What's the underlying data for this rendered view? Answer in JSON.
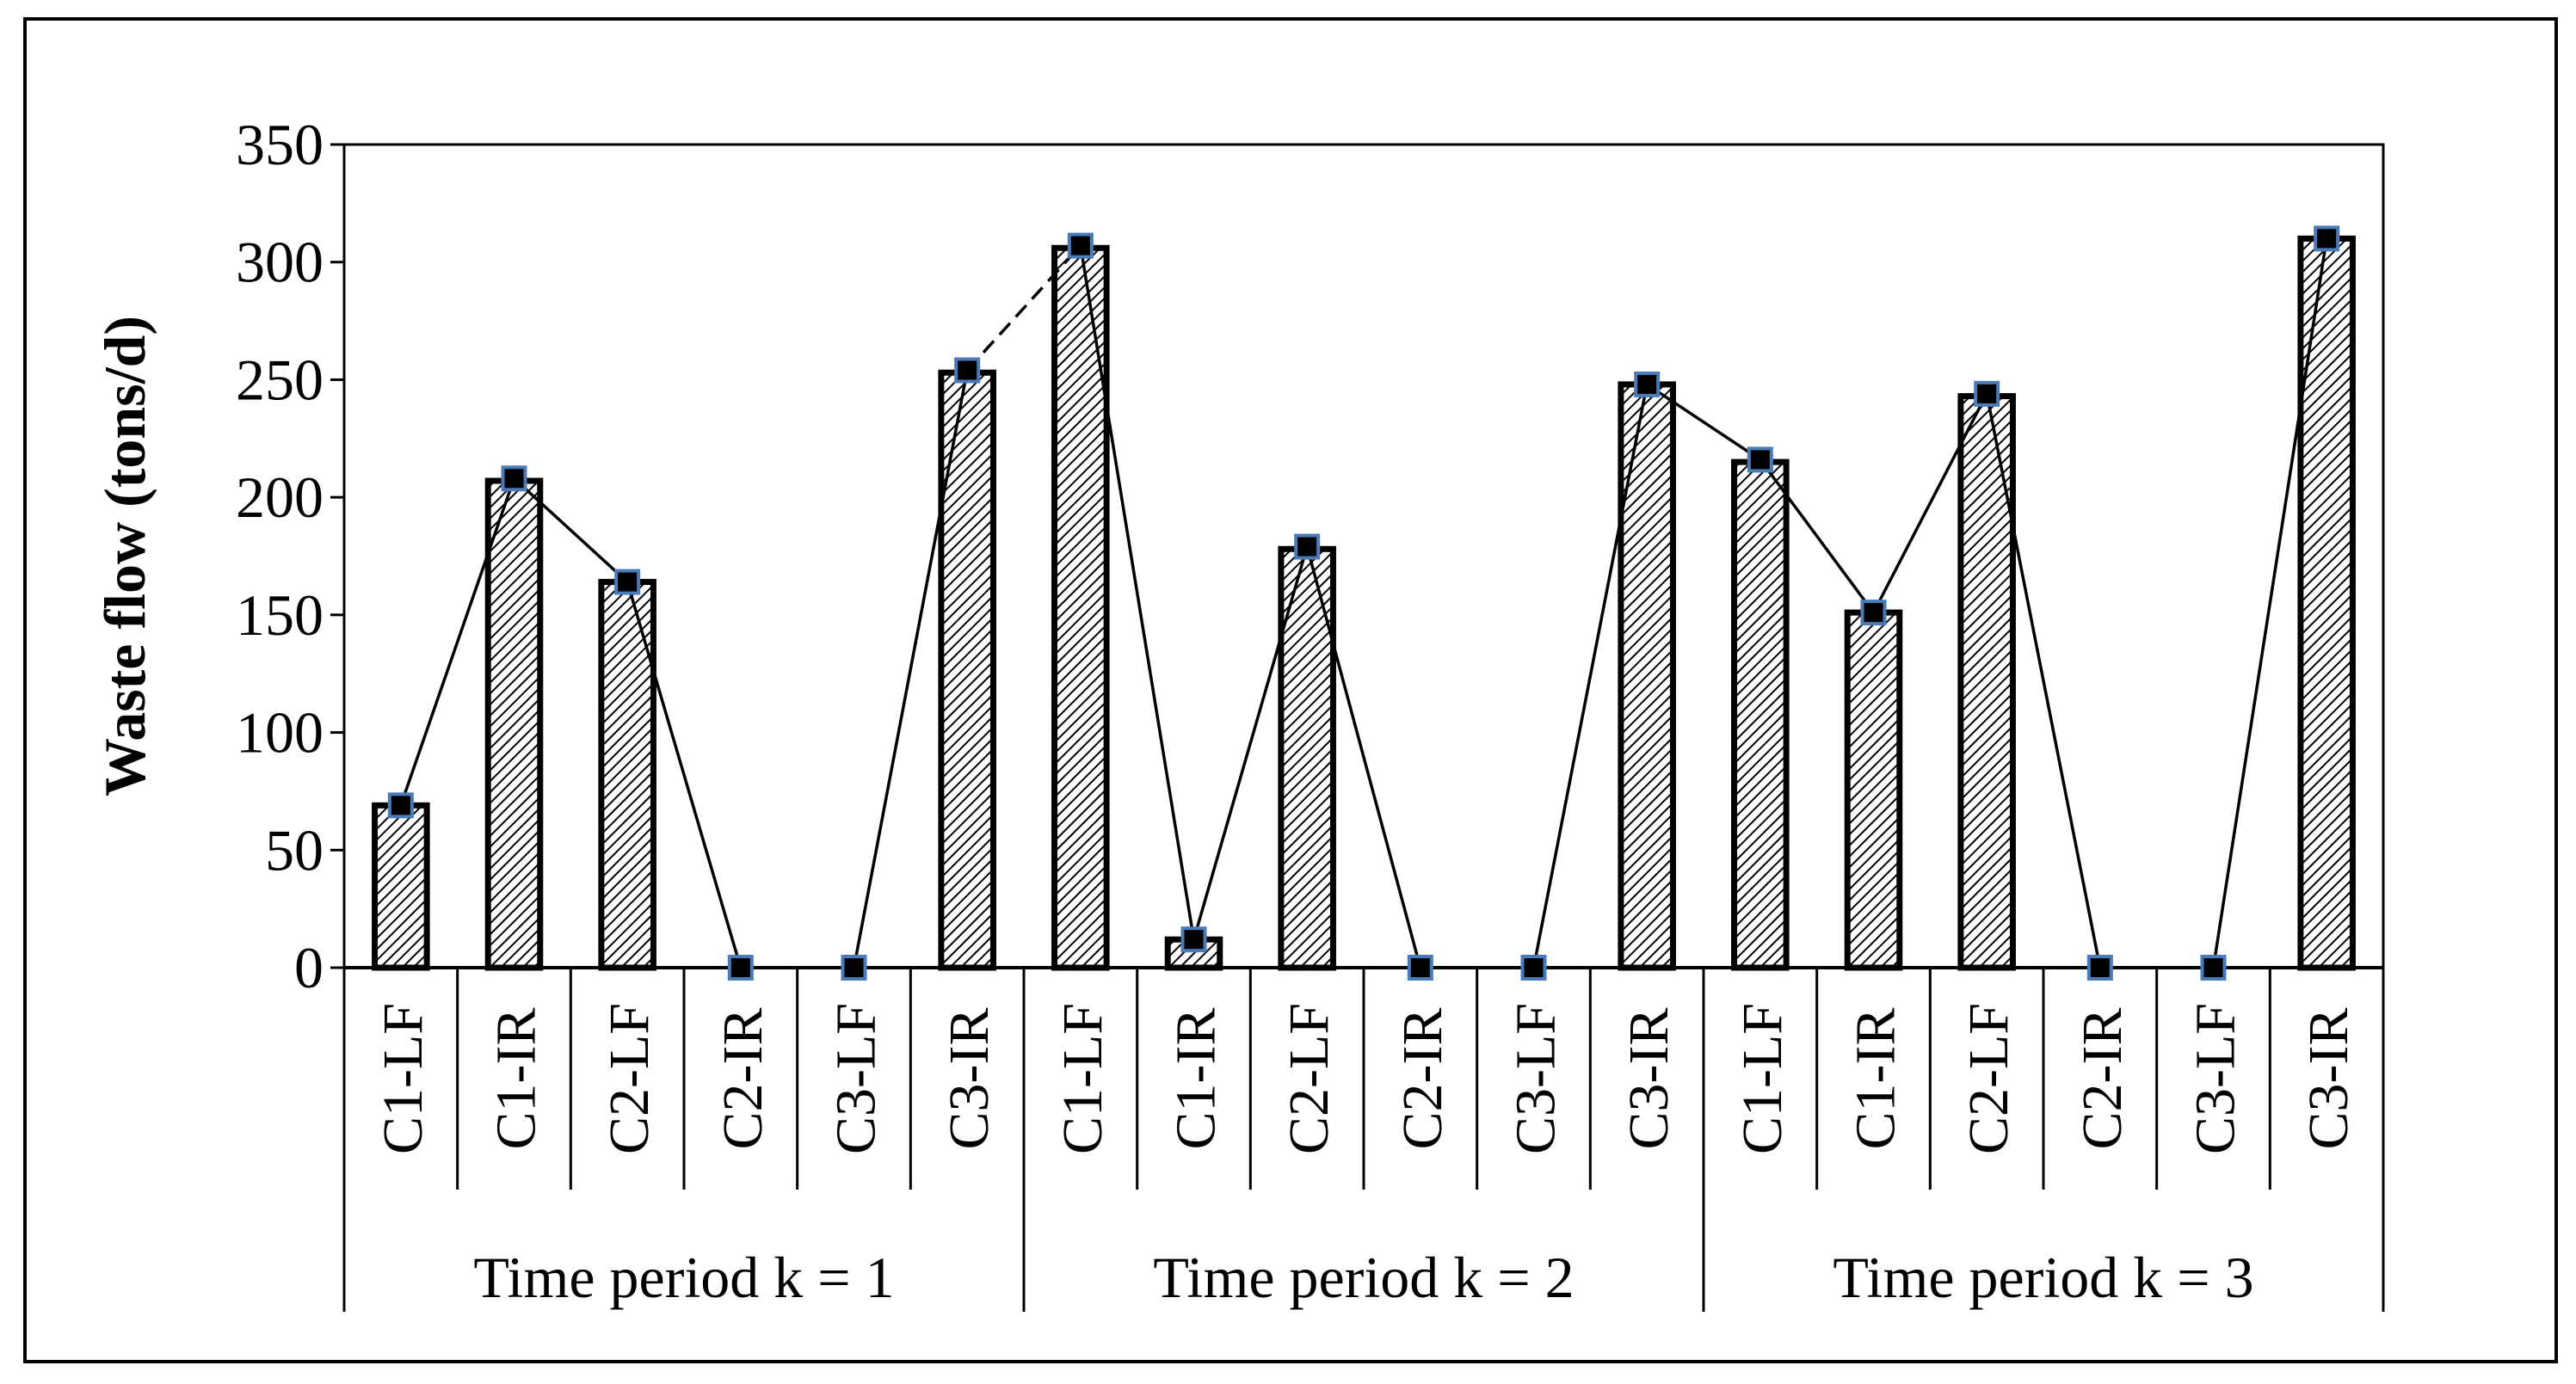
{
  "chart_data": {
    "type": "bar",
    "title": "",
    "xlabel": "",
    "ylabel": "Waste flow (tons/d)",
    "ylim": [
      0,
      350
    ],
    "yticks": [
      0,
      50,
      100,
      150,
      200,
      250,
      300,
      350
    ],
    "grid": false,
    "legend": "none",
    "categories": [
      "C1-LF",
      "C1-IR",
      "C2-LF",
      "C2-IR",
      "C3-LF",
      "C3-IR",
      "C1-LF",
      "C1-IR",
      "C2-LF",
      "C2-IR",
      "C3-LF",
      "C3-IR",
      "C1-LF",
      "C1-IR",
      "C2-LF",
      "C2-IR",
      "C3-LF",
      "C3-IR"
    ],
    "groups": [
      {
        "label": "Time period k = 1",
        "span": 6
      },
      {
        "label": "Time period k = 2",
        "span": 6
      },
      {
        "label": "Time period k = 3",
        "span": 6
      }
    ],
    "series": [
      {
        "type": "bar",
        "values": [
          69,
          207,
          164,
          0,
          0,
          253,
          306,
          12,
          178,
          0,
          0,
          248,
          215,
          151,
          243,
          0,
          0,
          310
        ]
      },
      {
        "type": "line",
        "values": [
          69,
          208,
          164,
          0,
          0,
          254,
          307,
          12,
          179,
          0,
          0,
          248,
          216,
          151,
          244,
          0,
          0,
          310
        ]
      }
    ],
    "dashed_segments": [
      [
        5,
        6
      ]
    ],
    "colors": {
      "bar_fill_pattern": "#000000",
      "bar_outline": "#000000",
      "line": "#000000",
      "marker_fill": "#000000",
      "marker_edge": "#4a7ab8"
    }
  }
}
